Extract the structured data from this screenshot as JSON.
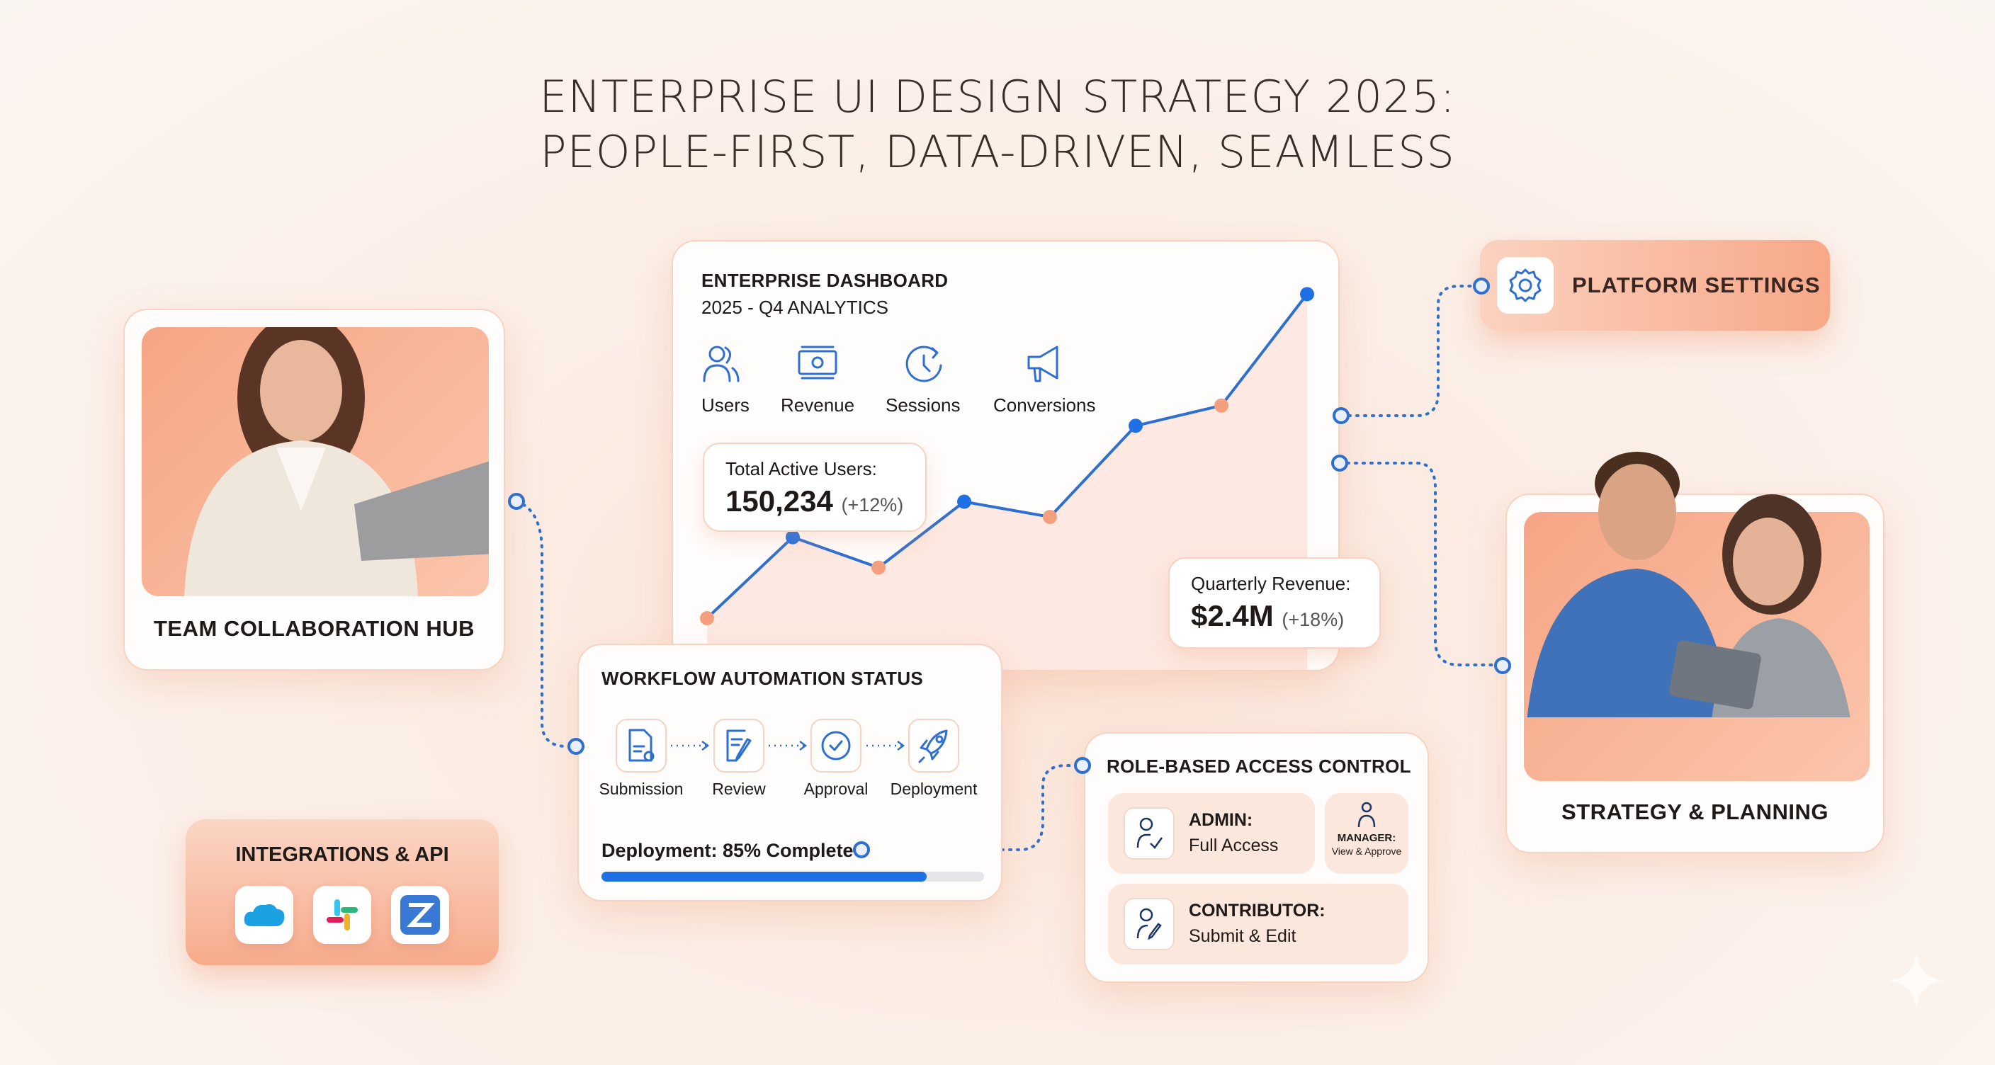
{
  "title": {
    "line1": "ENTERPRISE UI DESIGN STRATEGY 2025:",
    "line2": "PEOPLE-FIRST, DATA-DRIVEN, SEAMLESS"
  },
  "team_card": {
    "label": "TEAM COLLABORATION HUB"
  },
  "strategy_card": {
    "label": "STRATEGY & PLANNING"
  },
  "platform_settings": {
    "label": "PLATFORM SETTINGS",
    "icon": "gear-icon"
  },
  "dashboard": {
    "title": "ENTERPRISE DASHBOARD",
    "subtitle": "2025 - Q4 ANALYTICS",
    "metrics": [
      {
        "label": "Users",
        "icon": "users-icon"
      },
      {
        "label": "Revenue",
        "icon": "banknote-icon"
      },
      {
        "label": "Sessions",
        "icon": "clock-refresh-icon"
      },
      {
        "label": "Conversions",
        "icon": "megaphone-icon"
      }
    ],
    "active_users": {
      "label": "Total Active Users:",
      "value": "150,234",
      "change": "(+12%)"
    },
    "revenue": {
      "label": "Quarterly Revenue:",
      "value": "$2.4M",
      "change": "(+18%)"
    }
  },
  "chart_data": {
    "type": "line",
    "values": [
      0,
      16,
      10,
      23,
      20,
      38,
      42,
      64
    ],
    "point_colors": [
      "#f4a07f",
      "#1f6fe5",
      "#f4a07f",
      "#1f6fe5",
      "#f4a07f",
      "#1f6fe5",
      "#f4a07f",
      "#1f6fe5"
    ],
    "line_color": "#2f6fd0",
    "grid": false,
    "axes": false
  },
  "workflow": {
    "title": "WORKFLOW AUTOMATION STATUS",
    "steps": [
      {
        "label": "Submission",
        "icon": "document-icon"
      },
      {
        "label": "Review",
        "icon": "edit-icon"
      },
      {
        "label": "Approval",
        "icon": "check-circle-icon"
      },
      {
        "label": "Deployment",
        "icon": "rocket-icon"
      }
    ],
    "progress_label": "Deployment: 85% Complete",
    "progress": 0.85
  },
  "rbac": {
    "title": "ROLE-BASED ACCESS CONTROL",
    "admin": {
      "role": "ADMIN:",
      "access": "Full Access"
    },
    "manager": {
      "role": "MANAGER:",
      "access": "View & Approve"
    },
    "contributor": {
      "role": "CONTRIBUTOR:",
      "access": "Submit & Edit"
    }
  },
  "integrations": {
    "title": "INTEGRATIONS & API",
    "apps": [
      "cloud-icon",
      "slack-icon",
      "zendesk-icon"
    ]
  },
  "colors": {
    "accent": "#1f6fe5",
    "peach": "#f6a585",
    "connector": "#2f6fd0"
  }
}
